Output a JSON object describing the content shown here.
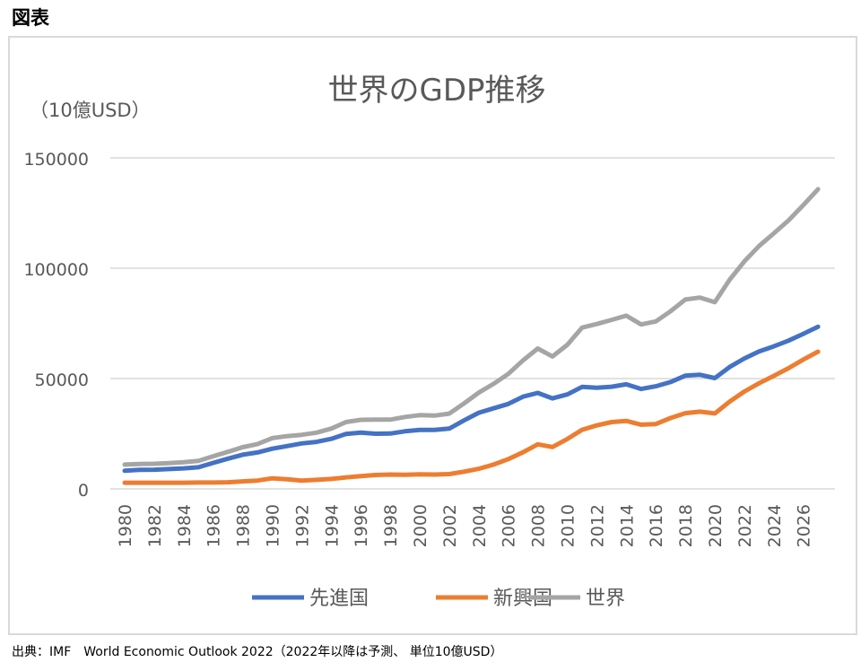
{
  "heading": "図表",
  "source": "出典：IMF　World Economic Outlook 2022（2022年以降は予測、 単位10億USD）",
  "colors": {
    "advanced": "#4472c4",
    "emerging": "#ed7d31",
    "world": "#a5a5a5",
    "grid": "#d9d9d9",
    "axis_text": "#595959"
  },
  "chart_data": {
    "type": "line",
    "title": "世界のGDP推移",
    "ylabel": "（10億USD）",
    "xlabel": "",
    "ylim": [
      0,
      150000
    ],
    "yticks": [
      "0",
      "50000",
      "100000",
      "150000"
    ],
    "x": [
      1980,
      1981,
      1982,
      1983,
      1984,
      1985,
      1986,
      1987,
      1988,
      1989,
      1990,
      1991,
      1992,
      1993,
      1994,
      1995,
      1996,
      1997,
      1998,
      1999,
      2000,
      2001,
      2002,
      2003,
      2004,
      2005,
      2006,
      2007,
      2008,
      2009,
      2010,
      2011,
      2012,
      2013,
      2014,
      2015,
      2016,
      2017,
      2018,
      2019,
      2020,
      2021,
      2022,
      2023,
      2024,
      2025,
      2026,
      2027
    ],
    "xtick_labels": [
      "1980",
      "1982",
      "1984",
      "1986",
      "1988",
      "1990",
      "1992",
      "1994",
      "1996",
      "1998",
      "2000",
      "2002",
      "2004",
      "2006",
      "2008",
      "2010",
      "2012",
      "2014",
      "2016",
      "2018",
      "2020",
      "2022",
      "2024",
      "2026"
    ],
    "legend_position": "bottom",
    "grid": true,
    "series": [
      {
        "name": "先進国",
        "color_key": "advanced",
        "values": [
          8200,
          8600,
          8700,
          9000,
          9300,
          9800,
          11800,
          13700,
          15500,
          16500,
          18200,
          19400,
          20600,
          21300,
          22700,
          24900,
          25500,
          25000,
          25100,
          26100,
          26700,
          26700,
          27300,
          31000,
          34500,
          36500,
          38500,
          41800,
          43500,
          41000,
          42800,
          46200,
          45800,
          46300,
          47400,
          45300,
          46500,
          48400,
          51300,
          51700,
          50200,
          55200,
          59100,
          62300,
          64600,
          67200,
          70300,
          73500
        ]
      },
      {
        "name": "新興国",
        "color_key": "emerging",
        "values": [
          2800,
          2800,
          2800,
          2800,
          2800,
          2900,
          2900,
          3000,
          3400,
          3800,
          4800,
          4400,
          3800,
          4100,
          4500,
          5200,
          5800,
          6300,
          6500,
          6400,
          6600,
          6500,
          6700,
          7800,
          9100,
          11000,
          13500,
          16600,
          20200,
          19000,
          22600,
          26800,
          28800,
          30300,
          30800,
          29100,
          29400,
          32100,
          34300,
          35000,
          34200,
          39500,
          44100,
          47900,
          51200,
          54700,
          58600,
          62200
        ]
      },
      {
        "name": "世界",
        "color_key": "world",
        "values": [
          11000,
          11300,
          11400,
          11700,
          12100,
          12700,
          14800,
          16800,
          18900,
          20300,
          23000,
          23900,
          24500,
          25500,
          27300,
          30300,
          31300,
          31400,
          31400,
          32600,
          33400,
          33200,
          34100,
          38700,
          43600,
          47600,
          52100,
          58200,
          63600,
          60000,
          65300,
          73100,
          74700,
          76600,
          78500,
          74500,
          75900,
          80500,
          85800,
          86700,
          84600,
          94700,
          103100,
          110100,
          115800,
          121700,
          128600,
          135800
        ]
      }
    ]
  }
}
